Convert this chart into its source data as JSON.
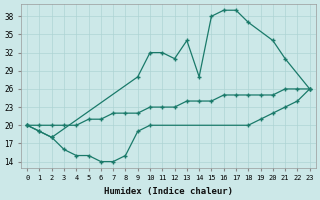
{
  "background_color": "#cce8e8",
  "line_color": "#1a7a6a",
  "grid_color": "#aed4d4",
  "xlabel": "Humidex (Indice chaleur)",
  "ylim": [
    13,
    40
  ],
  "xlim": [
    -0.5,
    23.5
  ],
  "yticks": [
    14,
    17,
    20,
    23,
    26,
    29,
    32,
    35,
    38
  ],
  "xticks": [
    0,
    1,
    2,
    3,
    4,
    5,
    6,
    7,
    8,
    9,
    10,
    11,
    12,
    13,
    14,
    15,
    16,
    17,
    18,
    19,
    20,
    21,
    22,
    23
  ],
  "line1_x": [
    0,
    1,
    2,
    9,
    10,
    11,
    12,
    13,
    14,
    15,
    16,
    17,
    18,
    20,
    21,
    23
  ],
  "line1_y": [
    20,
    19,
    18,
    28,
    32,
    32,
    31,
    34,
    28,
    38,
    39,
    39,
    37,
    34,
    31,
    26
  ],
  "line2_x": [
    0,
    1,
    2,
    3,
    4,
    5,
    6,
    7,
    8,
    9,
    10,
    11,
    12,
    13,
    14,
    15,
    16,
    17,
    18,
    19,
    20,
    21,
    22,
    23
  ],
  "line2_y": [
    20,
    20,
    20,
    20,
    20,
    21,
    21,
    22,
    22,
    22,
    23,
    23,
    23,
    24,
    24,
    24,
    25,
    25,
    25,
    25,
    25,
    26,
    26,
    26
  ],
  "line3_x": [
    0,
    1,
    2,
    3,
    4,
    5,
    6,
    7,
    8,
    9,
    10,
    18,
    19,
    20,
    21,
    22,
    23
  ],
  "line3_y": [
    20,
    19,
    18,
    16,
    15,
    15,
    14,
    14,
    15,
    19,
    20,
    20,
    21,
    22,
    23,
    24,
    26
  ]
}
